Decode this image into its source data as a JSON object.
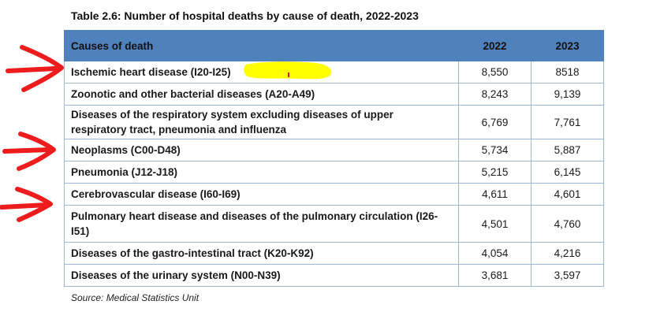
{
  "caption": "Table 2.6: Number of hospital deaths by cause of death, 2022-2023",
  "table": {
    "headers": [
      "Causes of death",
      "2022",
      "2023"
    ],
    "rows": [
      {
        "cause": "Ischemic heart disease  (I20-I25)",
        "y2022": "8,550",
        "y2023": "8518"
      },
      {
        "cause": "Zoonotic and other bacterial diseases (A20-A49)",
        "y2022": "8,243",
        "y2023": "9,139"
      },
      {
        "cause": "Diseases of the respiratory system excluding diseases of upper respiratory tract, pneumonia and influenza",
        "y2022": "6,769",
        "y2023": "7,761"
      },
      {
        "cause": "Neoplasms (C00-D48)",
        "y2022": "5,734",
        "y2023": "5,887"
      },
      {
        "cause": "Pneumonia (J12-J18)",
        "y2022": "5,215",
        "y2023": "6,145"
      },
      {
        "cause": "Cerebrovascular disease (I60-I69)",
        "y2022": "4,611",
        "y2023": "4,601"
      },
      {
        "cause": "Pulmonary heart disease and diseases of the pulmonary circulation (I26-I51)",
        "y2022": "4,501",
        "y2023": "4,760"
      },
      {
        "cause": "Diseases of the gastro-intestinal tract (K20-K92)",
        "y2022": "4,054",
        "y2023": "4,216"
      },
      {
        "cause": "Diseases of the urinary system (N00-N39)",
        "y2022": "3,681",
        "y2023": "3,597"
      }
    ]
  },
  "source": "Source: Medical Statistics Unit",
  "annotations": {
    "arrow_color": "#ee1c1c",
    "highlight_color": "#ffff00"
  }
}
